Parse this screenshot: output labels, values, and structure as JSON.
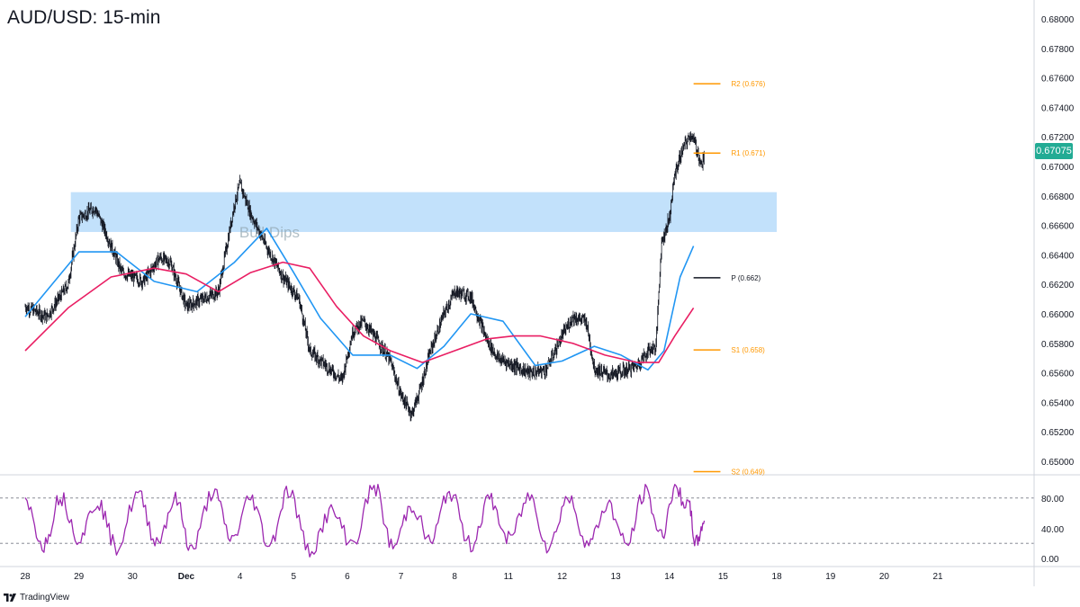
{
  "title": "AUD/USD: 15-min",
  "last_price_tag": "0.67075",
  "zone_label": "Bull Dips",
  "footer": {
    "brand": "TradingView",
    "logo_icon": "tradingview-logo-icon"
  },
  "colors": {
    "candles": "#131722",
    "ma_blue": "#2196f3",
    "ma_red": "#e91e63",
    "zone": "#bbdefb",
    "pivot_orange": "#ff9800",
    "pivot_black": "#131722",
    "stoch": "#9c27b0",
    "price_tag": "#22ab94"
  },
  "chart_data": [
    {
      "type": "candlestick",
      "title": "AUD/USD: 15-min",
      "x_ticks": [
        "28",
        "29",
        "30",
        "Dec",
        "4",
        "5",
        "6",
        "7",
        "8",
        "11",
        "12",
        "13",
        "14",
        "15",
        "18",
        "19",
        "20",
        "21"
      ],
      "y_ticks": [
        "0.68000",
        "0.67800",
        "0.67600",
        "0.67400",
        "0.67200",
        "0.67000",
        "0.66800",
        "0.66600",
        "0.66400",
        "0.66200",
        "0.66000",
        "0.65800",
        "0.65600",
        "0.65400",
        "0.65200",
        "0.65000"
      ],
      "ylim": [
        0.6485,
        0.681
      ],
      "price_path": [
        {
          "x": 0.0,
          "y": 0.6605
        },
        {
          "x": 0.4,
          "y": 0.6598
        },
        {
          "x": 0.8,
          "y": 0.662
        },
        {
          "x": 1.0,
          "y": 0.6665
        },
        {
          "x": 1.3,
          "y": 0.6672
        },
        {
          "x": 1.5,
          "y": 0.6655
        },
        {
          "x": 1.8,
          "y": 0.6628
        },
        {
          "x": 2.2,
          "y": 0.6622
        },
        {
          "x": 2.5,
          "y": 0.6638
        },
        {
          "x": 2.7,
          "y": 0.6635
        },
        {
          "x": 3.0,
          "y": 0.6605
        },
        {
          "x": 3.3,
          "y": 0.661
        },
        {
          "x": 3.6,
          "y": 0.6615
        },
        {
          "x": 3.9,
          "y": 0.6675
        },
        {
          "x": 4.0,
          "y": 0.6688
        },
        {
          "x": 4.2,
          "y": 0.6668
        },
        {
          "x": 4.5,
          "y": 0.6645
        },
        {
          "x": 4.8,
          "y": 0.6625
        },
        {
          "x": 5.1,
          "y": 0.661
        },
        {
          "x": 5.3,
          "y": 0.6575
        },
        {
          "x": 5.6,
          "y": 0.6565
        },
        {
          "x": 5.9,
          "y": 0.6555
        },
        {
          "x": 6.1,
          "y": 0.6588
        },
        {
          "x": 6.3,
          "y": 0.6595
        },
        {
          "x": 6.6,
          "y": 0.658
        },
        {
          "x": 6.8,
          "y": 0.6568
        },
        {
          "x": 7.0,
          "y": 0.6545
        },
        {
          "x": 7.2,
          "y": 0.6532
        },
        {
          "x": 7.35,
          "y": 0.6548
        },
        {
          "x": 7.55,
          "y": 0.6575
        },
        {
          "x": 7.8,
          "y": 0.66
        },
        {
          "x": 8.0,
          "y": 0.6615
        },
        {
          "x": 8.3,
          "y": 0.6612
        },
        {
          "x": 8.6,
          "y": 0.6582
        },
        {
          "x": 8.8,
          "y": 0.657
        },
        {
          "x": 9.1,
          "y": 0.6565
        },
        {
          "x": 9.4,
          "y": 0.656
        },
        {
          "x": 9.7,
          "y": 0.6562
        },
        {
          "x": 10.0,
          "y": 0.6585
        },
        {
          "x": 10.2,
          "y": 0.6598
        },
        {
          "x": 10.45,
          "y": 0.6595
        },
        {
          "x": 10.6,
          "y": 0.6563
        },
        {
          "x": 10.9,
          "y": 0.6558
        },
        {
          "x": 11.2,
          "y": 0.6562
        },
        {
          "x": 11.4,
          "y": 0.6565
        },
        {
          "x": 11.6,
          "y": 0.6575
        },
        {
          "x": 11.75,
          "y": 0.6578
        },
        {
          "x": 11.85,
          "y": 0.6648
        },
        {
          "x": 12.0,
          "y": 0.6665
        },
        {
          "x": 12.1,
          "y": 0.6695
        },
        {
          "x": 12.25,
          "y": 0.6712
        },
        {
          "x": 12.4,
          "y": 0.6722
        },
        {
          "x": 12.5,
          "y": 0.6713
        },
        {
          "x": 12.6,
          "y": 0.67
        },
        {
          "x": 12.65,
          "y": 0.67075
        }
      ],
      "series": [
        {
          "name": "",
          "color": "#2196f3",
          "values": [
            {
              "x": 0.0,
              "y": 0.6598
            },
            {
              "x": 1.0,
              "y": 0.6642
            },
            {
              "x": 1.7,
              "y": 0.6642
            },
            {
              "x": 2.4,
              "y": 0.6622
            },
            {
              "x": 3.2,
              "y": 0.6615
            },
            {
              "x": 3.9,
              "y": 0.6635
            },
            {
              "x": 4.5,
              "y": 0.6658
            },
            {
              "x": 5.0,
              "y": 0.6628
            },
            {
              "x": 5.5,
              "y": 0.6597
            },
            {
              "x": 6.1,
              "y": 0.6572
            },
            {
              "x": 6.8,
              "y": 0.6572
            },
            {
              "x": 7.3,
              "y": 0.6563
            },
            {
              "x": 7.8,
              "y": 0.6578
            },
            {
              "x": 8.3,
              "y": 0.66
            },
            {
              "x": 8.9,
              "y": 0.6595
            },
            {
              "x": 9.5,
              "y": 0.6565
            },
            {
              "x": 10.0,
              "y": 0.6568
            },
            {
              "x": 10.6,
              "y": 0.6578
            },
            {
              "x": 11.1,
              "y": 0.6572
            },
            {
              "x": 11.6,
              "y": 0.6562
            },
            {
              "x": 11.9,
              "y": 0.6575
            },
            {
              "x": 12.2,
              "y": 0.6625
            },
            {
              "x": 12.45,
              "y": 0.6646
            }
          ]
        },
        {
          "name": "",
          "color": "#e91e63",
          "values": [
            {
              "x": 0.0,
              "y": 0.6575
            },
            {
              "x": 0.8,
              "y": 0.6604
            },
            {
              "x": 1.6,
              "y": 0.6625
            },
            {
              "x": 2.4,
              "y": 0.6631
            },
            {
              "x": 3.0,
              "y": 0.6627
            },
            {
              "x": 3.6,
              "y": 0.6615
            },
            {
              "x": 4.2,
              "y": 0.6628
            },
            {
              "x": 4.8,
              "y": 0.6635
            },
            {
              "x": 5.3,
              "y": 0.6631
            },
            {
              "x": 5.8,
              "y": 0.6605
            },
            {
              "x": 6.3,
              "y": 0.6585
            },
            {
              "x": 6.8,
              "y": 0.6575
            },
            {
              "x": 7.4,
              "y": 0.6567
            },
            {
              "x": 8.0,
              "y": 0.6575
            },
            {
              "x": 8.6,
              "y": 0.6583
            },
            {
              "x": 9.1,
              "y": 0.6585
            },
            {
              "x": 9.6,
              "y": 0.6585
            },
            {
              "x": 10.2,
              "y": 0.658
            },
            {
              "x": 10.8,
              "y": 0.6572
            },
            {
              "x": 11.4,
              "y": 0.6567
            },
            {
              "x": 11.8,
              "y": 0.6567
            },
            {
              "x": 12.1,
              "y": 0.6585
            },
            {
              "x": 12.45,
              "y": 0.6604
            }
          ]
        }
      ],
      "zone": {
        "label": "Bull Dips",
        "y_low": 0.66555,
        "y_high": 0.66825,
        "x_start": 0.85,
        "x_end": 14.0
      },
      "levels": [
        {
          "label": "R2 (0.676)",
          "value": 0.6756,
          "color": "#ff9800",
          "x_start": 12.45,
          "x_end": 12.95
        },
        {
          "label": "R1 (0.671)",
          "value": 0.6709,
          "color": "#ff9800",
          "x_start": 12.45,
          "x_end": 12.95
        },
        {
          "label": "P (0.662)",
          "value": 0.66245,
          "color": "#131722",
          "x_start": 12.45,
          "x_end": 12.95
        },
        {
          "label": "S1 (0.658)",
          "value": 0.65755,
          "color": "#ff9800",
          "x_start": 12.45,
          "x_end": 12.95
        },
        {
          "label": "S2 (0.649)",
          "value": 0.6493,
          "color": "#ff9800",
          "x_start": 12.45,
          "x_end": 12.95
        }
      ],
      "last_price": 0.67075
    },
    {
      "type": "line",
      "y_ticks": [
        "80.00",
        "40.00",
        "0.00"
      ],
      "ylim": [
        -5,
        110
      ],
      "bands": [
        80,
        20
      ],
      "series": [
        {
          "name": "",
          "color": "#9c27b0",
          "values": [
            {
              "x": 0.0,
              "y": 72
            },
            {
              "x": 0.35,
              "y": 18
            },
            {
              "x": 0.65,
              "y": 82
            },
            {
              "x": 1.0,
              "y": 28
            },
            {
              "x": 1.35,
              "y": 75
            },
            {
              "x": 1.7,
              "y": 15
            },
            {
              "x": 2.1,
              "y": 85
            },
            {
              "x": 2.45,
              "y": 22
            },
            {
              "x": 2.8,
              "y": 78
            },
            {
              "x": 3.1,
              "y": 12
            },
            {
              "x": 3.5,
              "y": 88
            },
            {
              "x": 3.85,
              "y": 25
            },
            {
              "x": 4.2,
              "y": 80
            },
            {
              "x": 4.55,
              "y": 18
            },
            {
              "x": 4.9,
              "y": 90
            },
            {
              "x": 5.3,
              "y": 10
            },
            {
              "x": 5.7,
              "y": 62
            },
            {
              "x": 6.1,
              "y": 20
            },
            {
              "x": 6.5,
              "y": 95
            },
            {
              "x": 6.85,
              "y": 15
            },
            {
              "x": 7.2,
              "y": 70
            },
            {
              "x": 7.55,
              "y": 22
            },
            {
              "x": 7.9,
              "y": 88
            },
            {
              "x": 8.3,
              "y": 18
            },
            {
              "x": 8.65,
              "y": 78
            },
            {
              "x": 9.0,
              "y": 25
            },
            {
              "x": 9.4,
              "y": 82
            },
            {
              "x": 9.75,
              "y": 15
            },
            {
              "x": 10.1,
              "y": 80
            },
            {
              "x": 10.5,
              "y": 20
            },
            {
              "x": 10.85,
              "y": 72
            },
            {
              "x": 11.2,
              "y": 18
            },
            {
              "x": 11.55,
              "y": 88
            },
            {
              "x": 11.85,
              "y": 30
            },
            {
              "x": 12.1,
              "y": 92
            },
            {
              "x": 12.35,
              "y": 70
            },
            {
              "x": 12.5,
              "y": 20
            },
            {
              "x": 12.65,
              "y": 50
            }
          ]
        }
      ]
    }
  ]
}
